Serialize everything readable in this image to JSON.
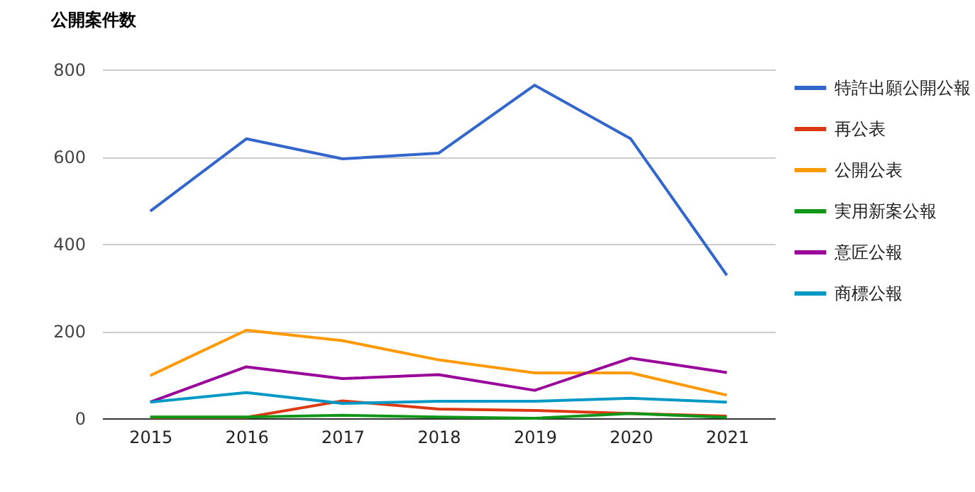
{
  "chart_data": {
    "type": "line",
    "title": "公開案件数",
    "categories": [
      "2015",
      "2016",
      "2017",
      "2018",
      "2019",
      "2020",
      "2021"
    ],
    "series": [
      {
        "name": "特許出願公開公報",
        "color": "#3366cc",
        "values": [
          475,
          641,
          595,
          608,
          764,
          641,
          328
        ]
      },
      {
        "name": "再公表",
        "color": "#dc3912",
        "values": [
          2,
          2,
          40,
          21,
          18,
          11,
          5
        ]
      },
      {
        "name": "公開公表",
        "color": "#ff9900",
        "values": [
          98,
          202,
          178,
          134,
          104,
          104,
          53
        ]
      },
      {
        "name": "実用新案公報",
        "color": "#109618",
        "values": [
          3,
          3,
          7,
          3,
          0,
          11,
          2
        ]
      },
      {
        "name": "意匠公報",
        "color": "#990099",
        "values": [
          37,
          118,
          91,
          100,
          64,
          138,
          105
        ]
      },
      {
        "name": "商標公報",
        "color": "#0099c6",
        "values": [
          37,
          59,
          34,
          39,
          39,
          46,
          37
        ]
      }
    ],
    "ylim": [
      0,
      800
    ],
    "yticks": [
      0,
      200,
      400,
      600,
      800
    ],
    "grid": "y",
    "legend": "right",
    "marker": "none",
    "line_style": "solid"
  }
}
